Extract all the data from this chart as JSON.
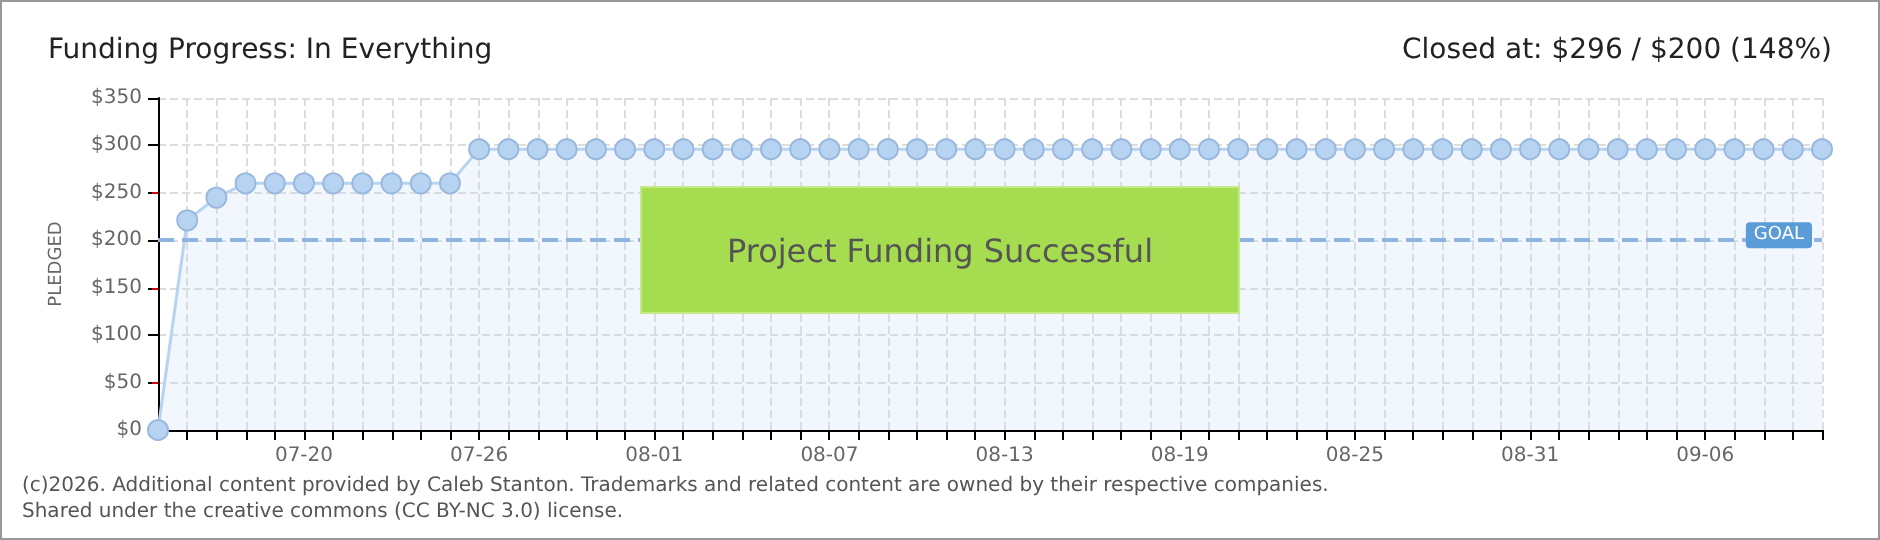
{
  "chart_data": {
    "type": "area",
    "title": "Funding Progress: In Everything",
    "subtitle": "Closed at: $296 / $200 (148%)",
    "ylabel": "PLEDGED",
    "x": [
      "--07-15",
      "--07-16",
      "--07-17",
      "--07-18",
      "--07-19",
      "--07-20",
      "--07-21",
      "--07-22",
      "--07-23",
      "--07-24",
      "--07-25",
      "--07-26",
      "--07-27",
      "--07-28",
      "--07-29",
      "--07-30",
      "--07-31",
      "--08-01",
      "--08-02",
      "--08-03",
      "--08-04",
      "--08-05",
      "--08-06",
      "--08-07",
      "--08-08",
      "--08-09",
      "--08-10",
      "--08-11",
      "--08-12",
      "--08-13",
      "--08-14",
      "--08-15",
      "--08-16",
      "--08-17",
      "--08-18",
      "--08-19",
      "--08-20",
      "--08-21",
      "--08-22",
      "--08-23",
      "--08-24",
      "--08-25",
      "--08-26",
      "--08-27",
      "--08-28",
      "--08-29",
      "--08-30",
      "--08-31",
      "--09-01",
      "--09-02",
      "--09-03",
      "--09-04",
      "--09-05",
      "--09-06",
      "--09-07",
      "--09-08",
      "--09-09",
      "--09-10"
    ],
    "series": [
      {
        "color": "#b7d3f2",
        "values": [
          0,
          221,
          245,
          260,
          260,
          260,
          260,
          260,
          260,
          260,
          260,
          296,
          296,
          296,
          296,
          296,
          296,
          296,
          296,
          296,
          296,
          296,
          296,
          296,
          296,
          296,
          296,
          296,
          296,
          296,
          296,
          296,
          296,
          296,
          296,
          296,
          296,
          296,
          296,
          296,
          296,
          296,
          296,
          296,
          296,
          296,
          296,
          296,
          296,
          296,
          296,
          296,
          296,
          296,
          296,
          296,
          296,
          296
        ]
      }
    ],
    "xlim": [
      "--07-15",
      "--09-10"
    ],
    "xticks": [
      {
        "value": "--07-20",
        "label": "07-20"
      },
      {
        "value": "--07-26",
        "label": "07-26"
      },
      {
        "value": "--08-01",
        "label": "08-01"
      },
      {
        "value": "--08-07",
        "label": "08-07"
      },
      {
        "value": "--08-13",
        "label": "08-13"
      },
      {
        "value": "--08-19",
        "label": "08-19"
      },
      {
        "value": "--08-25",
        "label": "08-25"
      },
      {
        "value": "--08-31",
        "label": "08-31"
      },
      {
        "value": "--09-06",
        "label": "09-06"
      }
    ],
    "ylim": [
      0,
      350
    ],
    "yticks": [
      {
        "value": 0,
        "label": "$0"
      },
      {
        "value": 50,
        "label": "$50"
      },
      {
        "value": 100,
        "label": "$100"
      },
      {
        "value": 150,
        "label": "$150"
      },
      {
        "value": 200,
        "label": "$200"
      },
      {
        "value": 250,
        "label": "$250"
      },
      {
        "value": 300,
        "label": "$300"
      },
      {
        "value": 350,
        "label": "$350"
      }
    ],
    "ref_lines": [
      {
        "axis": "y",
        "value": 200,
        "label": "GOAL",
        "color": "#8fb4e0",
        "line_style": "dashed"
      }
    ],
    "annotations": [
      "Project Funding Successful",
      "(c)2026. Additional content provided by Caleb Stanton. Trademarks and related content are owned by their respective companies.",
      "Shared under the creative commons (CC BY-NC 3.0) license."
    ],
    "grid": true,
    "marker": "circle",
    "line_style": "solid"
  }
}
